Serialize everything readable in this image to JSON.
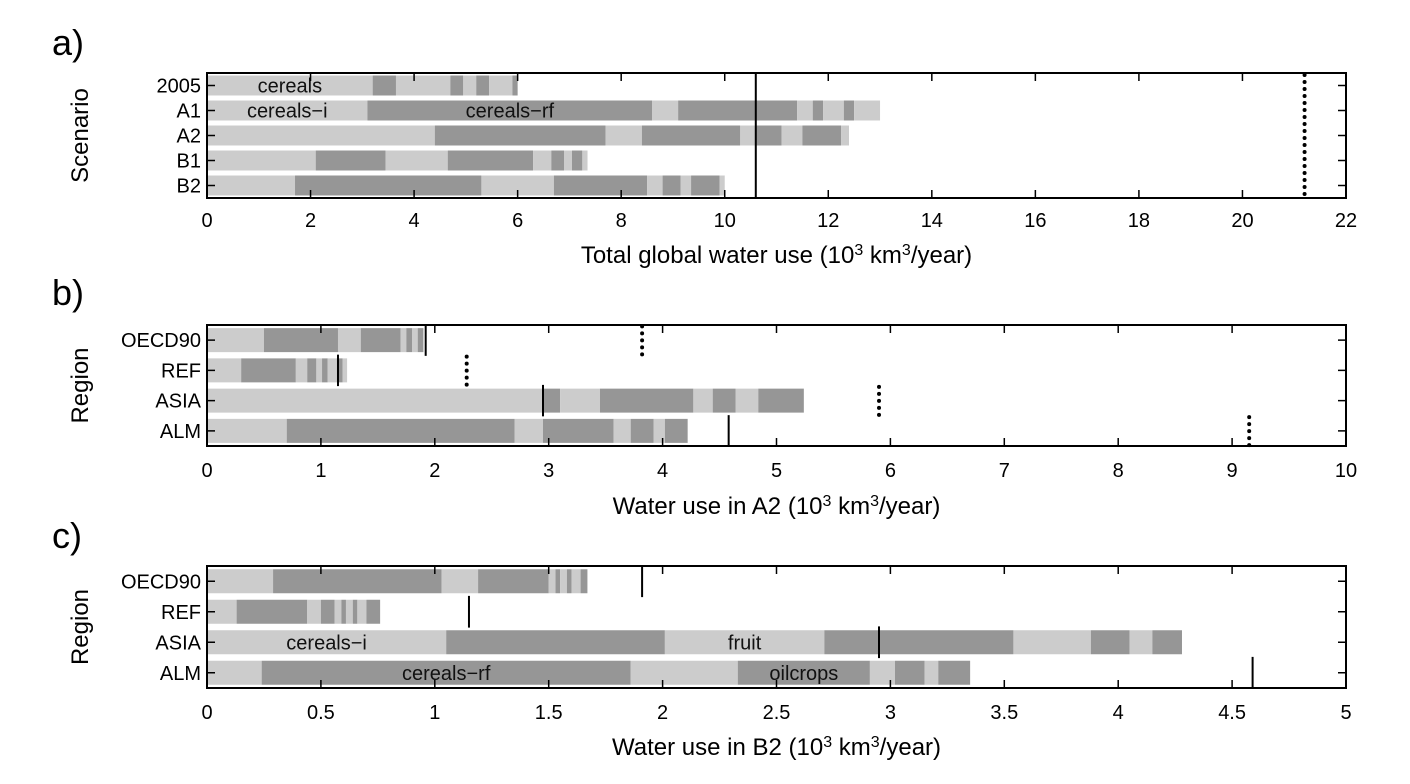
{
  "chart_data": [
    {
      "type": "bar",
      "orientation": "horizontal",
      "stacked": true,
      "panel_label": "a)",
      "xlabel_pre": "Total global water use (10",
      "xlabel_sup1": "3",
      "xlabel_mid": " km",
      "xlabel_sup2": "3",
      "xlabel_post": "/year)",
      "ylabel": "Scenario",
      "xlim": [
        0,
        22
      ],
      "xticks": [
        0,
        2,
        4,
        6,
        8,
        10,
        12,
        14,
        16,
        18,
        20,
        22
      ],
      "categories": [
        "2005",
        "A1",
        "A2",
        "B1",
        "B2"
      ],
      "colors": {
        "light": "#cccccc",
        "dark": "#969696",
        "frame": "#000000"
      },
      "segments": [
        [
          3.2,
          0.45,
          1.05,
          0.25,
          0.25,
          0.25,
          0.45,
          0.1
        ],
        [
          3.1,
          5.5,
          0.5,
          2.3,
          0.3,
          0.2,
          0.4,
          0.2,
          0.5
        ],
        [
          4.4,
          3.3,
          0.7,
          1.9,
          0.3,
          0.5,
          0.4,
          0.75,
          0.15
        ],
        [
          2.1,
          1.35,
          1.2,
          1.65,
          0.35,
          0.25,
          0.15,
          0.2,
          0.1
        ],
        [
          1.7,
          3.6,
          1.4,
          1.8,
          0.3,
          0.35,
          0.2,
          0.55,
          0.1
        ]
      ],
      "segment_labels": [
        {
          "row": 0,
          "seg": 0,
          "text": "cereals"
        },
        {
          "row": 1,
          "seg": 0,
          "text": "cereals−i"
        },
        {
          "row": 1,
          "seg": 1,
          "text": "cereals−rf"
        }
      ],
      "reference_lines": [
        {
          "style": "solid",
          "value": 10.6,
          "span": "all"
        },
        {
          "style": "dotted",
          "value": 21.2,
          "span": "all"
        }
      ]
    },
    {
      "type": "bar",
      "orientation": "horizontal",
      "stacked": true,
      "panel_label": "b)",
      "xlabel_pre": "Water use in A2 (10",
      "xlabel_sup1": "3",
      "xlabel_mid": " km",
      "xlabel_sup2": "3",
      "xlabel_post": "/year)",
      "ylabel": "Region",
      "xlim": [
        0,
        10
      ],
      "xticks": [
        0,
        1,
        2,
        3,
        4,
        5,
        6,
        7,
        8,
        9,
        10
      ],
      "categories": [
        "OECD90",
        "REF",
        "ASIA",
        "ALM"
      ],
      "colors": {
        "light": "#cccccc",
        "dark": "#969696",
        "frame": "#000000"
      },
      "segments": [
        [
          0.5,
          0.65,
          0.2,
          0.35,
          0.05,
          0.05,
          0.05,
          0.05
        ],
        [
          0.3,
          0.48,
          0.1,
          0.08,
          0.05,
          0.05,
          0.08,
          0.05,
          0.04
        ],
        [
          2.95,
          0.15,
          0.35,
          0.82,
          0.17,
          0.2,
          0.2,
          0.4
        ],
        [
          0.7,
          2.0,
          0.25,
          0.62,
          0.15,
          0.2,
          0.1,
          0.2
        ]
      ],
      "segment_labels": [],
      "reference_lines": [
        {
          "style": "solid",
          "value": 1.92,
          "row": 0
        },
        {
          "style": "dotted",
          "value": 3.82,
          "row": 0
        },
        {
          "style": "solid",
          "value": 1.15,
          "row": 1
        },
        {
          "style": "dotted",
          "value": 2.28,
          "row": 1
        },
        {
          "style": "solid",
          "value": 2.95,
          "row": 2
        },
        {
          "style": "dotted",
          "value": 5.9,
          "row": 2
        },
        {
          "style": "solid",
          "value": 4.58,
          "row": 3
        },
        {
          "style": "dotted",
          "value": 9.15,
          "row": 3
        }
      ]
    },
    {
      "type": "bar",
      "orientation": "horizontal",
      "stacked": true,
      "panel_label": "c)",
      "xlabel_pre": "Water use in B2 (10",
      "xlabel_sup1": "3",
      "xlabel_mid": " km",
      "xlabel_sup2": "3",
      "xlabel_post": "/year)",
      "ylabel": "Region",
      "xlim": [
        0,
        5
      ],
      "xticks": [
        0,
        0.5,
        1,
        1.5,
        2,
        2.5,
        3,
        3.5,
        4,
        4.5,
        5
      ],
      "categories": [
        "OECD90",
        "REF",
        "ASIA",
        "ALM"
      ],
      "colors": {
        "light": "#cccccc",
        "dark": "#969696",
        "frame": "#000000"
      },
      "segments": [
        [
          0.29,
          0.74,
          0.16,
          0.31,
          0.03,
          0.02,
          0.03,
          0.02,
          0.04,
          0.03
        ],
        [
          0.13,
          0.31,
          0.06,
          0.06,
          0.03,
          0.02,
          0.03,
          0.02,
          0.04,
          0.06
        ],
        [
          1.05,
          0.96,
          0.7,
          0.83,
          0.34,
          0.17,
          0.1,
          0.13
        ],
        [
          0.24,
          1.62,
          0.47,
          0.58,
          0.11,
          0.13,
          0.06,
          0.14
        ]
      ],
      "segment_labels": [
        {
          "row": 2,
          "seg": 0,
          "text": "cereals−i"
        },
        {
          "row": 2,
          "seg": 2,
          "text": "fruit"
        },
        {
          "row": 3,
          "seg": 1,
          "text": "cereals−rf"
        },
        {
          "row": 3,
          "seg": 3,
          "text": "oilcrops"
        }
      ],
      "reference_lines": [
        {
          "style": "solid",
          "value": 1.91,
          "row": 0
        },
        {
          "style": "solid",
          "value": 1.15,
          "row": 1
        },
        {
          "style": "solid",
          "value": 2.95,
          "row": 2
        },
        {
          "style": "solid",
          "value": 4.59,
          "row": 3
        }
      ]
    }
  ]
}
